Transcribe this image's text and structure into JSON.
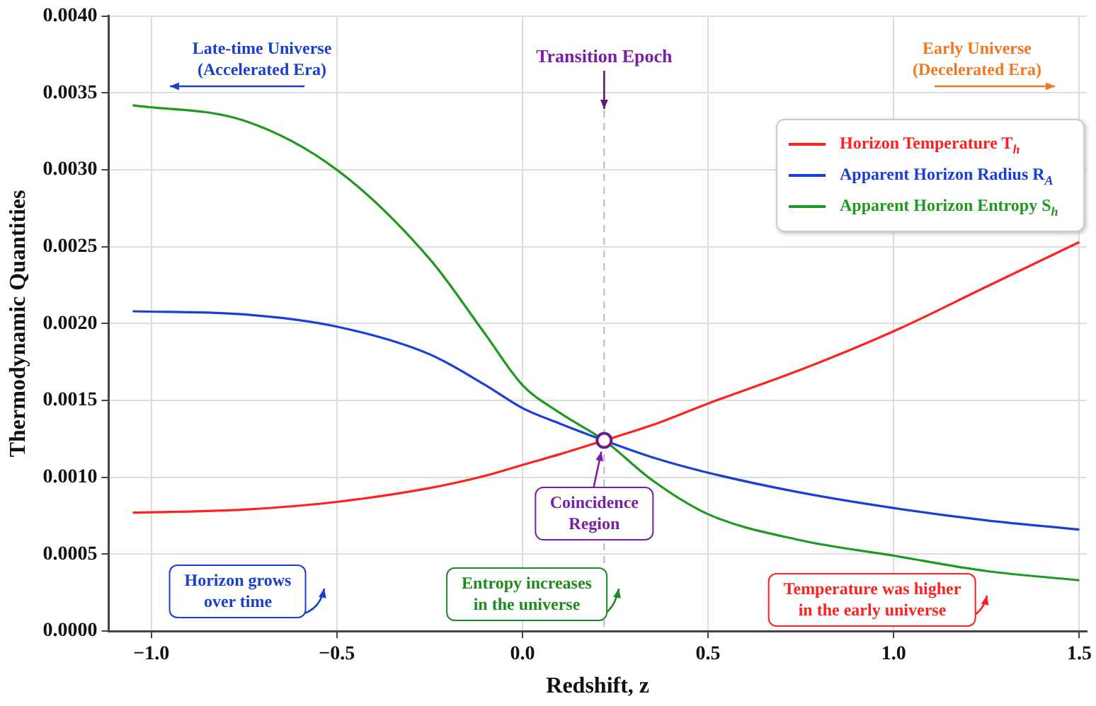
{
  "chart_data": {
    "type": "line",
    "xlabel": "Redshift, z",
    "ylabel": "Thermodynamic Quantities",
    "x": [
      -1.05,
      -0.75,
      -0.5,
      -0.25,
      -0.1,
      0,
      0.1,
      0.22,
      0.35,
      0.5,
      0.75,
      1.0,
      1.25,
      1.5
    ],
    "series": [
      {
        "name": "Horizon Temperature T$_{h}$",
        "color": "#ff2020",
        "values": [
          0.00077,
          0.00079,
          0.00084,
          0.00093,
          0.00101,
          0.00108,
          0.00115,
          0.00124,
          0.00134,
          0.00148,
          0.0017,
          0.00195,
          0.00224,
          0.00253
        ]
      },
      {
        "name": "Apparent Horizon Radius R$_{A}$",
        "color": "#1a3fd6",
        "values": [
          0.00208,
          0.00206,
          0.00198,
          0.0018,
          0.0016,
          0.00145,
          0.00135,
          0.00124,
          0.00113,
          0.00103,
          0.0009,
          0.0008,
          0.00072,
          0.00066
        ]
      },
      {
        "name": "Apparent Horizon Entropy S$_{h}$",
        "color": "#1f9a1f",
        "values": [
          0.00342,
          0.00332,
          0.003,
          0.00242,
          0.00193,
          0.0016,
          0.00142,
          0.00124,
          0.00098,
          0.00076,
          0.00059,
          0.00049,
          0.00039,
          0.00033
        ]
      }
    ],
    "xlim": [
      -1.115,
      1.52
    ],
    "xticks": [
      {
        "value": -1,
        "label": "−1.0"
      },
      {
        "value": -0.5,
        "label": "−0.5"
      },
      {
        "value": 0,
        "label": "0.0"
      },
      {
        "value": 0.5,
        "label": "0.5"
      },
      {
        "value": 1,
        "label": "1.0"
      },
      {
        "value": 1.5,
        "label": "1.5"
      }
    ],
    "ylim": [
      0,
      0.004
    ],
    "yticks": [
      {
        "value": 0,
        "label": "0.0000"
      },
      {
        "value": 0.0005,
        "label": "0.0005"
      },
      {
        "value": 0.001,
        "label": "0.0010"
      },
      {
        "value": 0.0015,
        "label": "0.0015"
      },
      {
        "value": 0.002,
        "label": "0.0020"
      },
      {
        "value": 0.0025,
        "label": "0.0025"
      },
      {
        "value": 0.003,
        "label": "0.0030"
      },
      {
        "value": 0.0035,
        "label": "0.0035"
      },
      {
        "value": 0.004,
        "label": "0.0040"
      }
    ],
    "grid": true,
    "legend": "top right",
    "marker": "none",
    "line_style": "solid",
    "ref_lines": [
      {
        "axis": "x",
        "value": 0.22,
        "label": "Transition Epoch",
        "color": "#c8a8dc",
        "line_style": "dashed"
      }
    ],
    "annotations": [
      "Late-time Universe\n(Accelerated Era)",
      "Early Universe\n(Decelerated Era)",
      {
        "text": "Coincidence\nRegion",
        "x": 0.22,
        "y": 0.00124
      },
      "Horizon grows\nover time",
      "Entropy increases\nin the universe",
      "Temperature was higher\nin the early universe"
    ]
  }
}
